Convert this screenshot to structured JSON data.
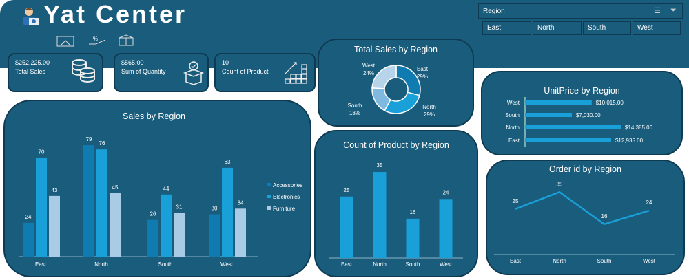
{
  "header": {
    "title": "Yat Center",
    "nav_icons": [
      "house-icon",
      "hand-percent-icon",
      "box-icon"
    ]
  },
  "kpis": [
    {
      "value": "$252,225.00",
      "label": "Total Sales",
      "icon": "coins-icon"
    },
    {
      "value": "$565.00",
      "label": "Sum of Quantity",
      "icon": "box-check-icon"
    },
    {
      "value": "10",
      "label": "Count of Product",
      "icon": "growth-boxes-icon"
    }
  ],
  "slicer": {
    "title": "Region",
    "items": [
      "East",
      "North",
      "South",
      "West"
    ]
  },
  "colors": {
    "panel": "#1a5c7c",
    "accessories": "#0f7bb0",
    "electronics": "#1aa0d8",
    "furniture": "#a9cbe6"
  },
  "chart_data": [
    {
      "type": "pie",
      "title": "Total Sales by Region",
      "categories": [
        "East",
        "North",
        "South",
        "West"
      ],
      "values": [
        29,
        29,
        18,
        24
      ],
      "labels": [
        "29%",
        "29%",
        "18%",
        "24%"
      ]
    },
    {
      "type": "bar",
      "title": "Sales by Region",
      "categories": [
        "East",
        "North",
        "South",
        "West"
      ],
      "series": [
        {
          "name": "Accessories",
          "values": [
            24,
            79,
            26,
            30
          ]
        },
        {
          "name": "Electronics",
          "values": [
            70,
            76,
            44,
            63
          ]
        },
        {
          "name": "Furniture",
          "values": [
            43,
            45,
            31,
            34
          ]
        }
      ],
      "legend": "right"
    },
    {
      "type": "bar",
      "title": "Count of Product by Region",
      "categories": [
        "East",
        "North",
        "South",
        "West"
      ],
      "values": [
        25,
        35,
        16,
        24
      ]
    },
    {
      "type": "bar",
      "orientation": "horizontal",
      "title": "UnitPrice by Region",
      "categories": [
        "West",
        "South",
        "North",
        "East"
      ],
      "values": [
        10015,
        7030,
        14385,
        12935
      ],
      "labels": [
        "$10,015.00",
        "$7,030.00",
        "$14,385.00",
        "$12,935.00"
      ]
    },
    {
      "type": "line",
      "title": "Order id by Region",
      "categories": [
        "East",
        "North",
        "South",
        "West"
      ],
      "values": [
        25,
        35,
        16,
        24
      ]
    }
  ]
}
